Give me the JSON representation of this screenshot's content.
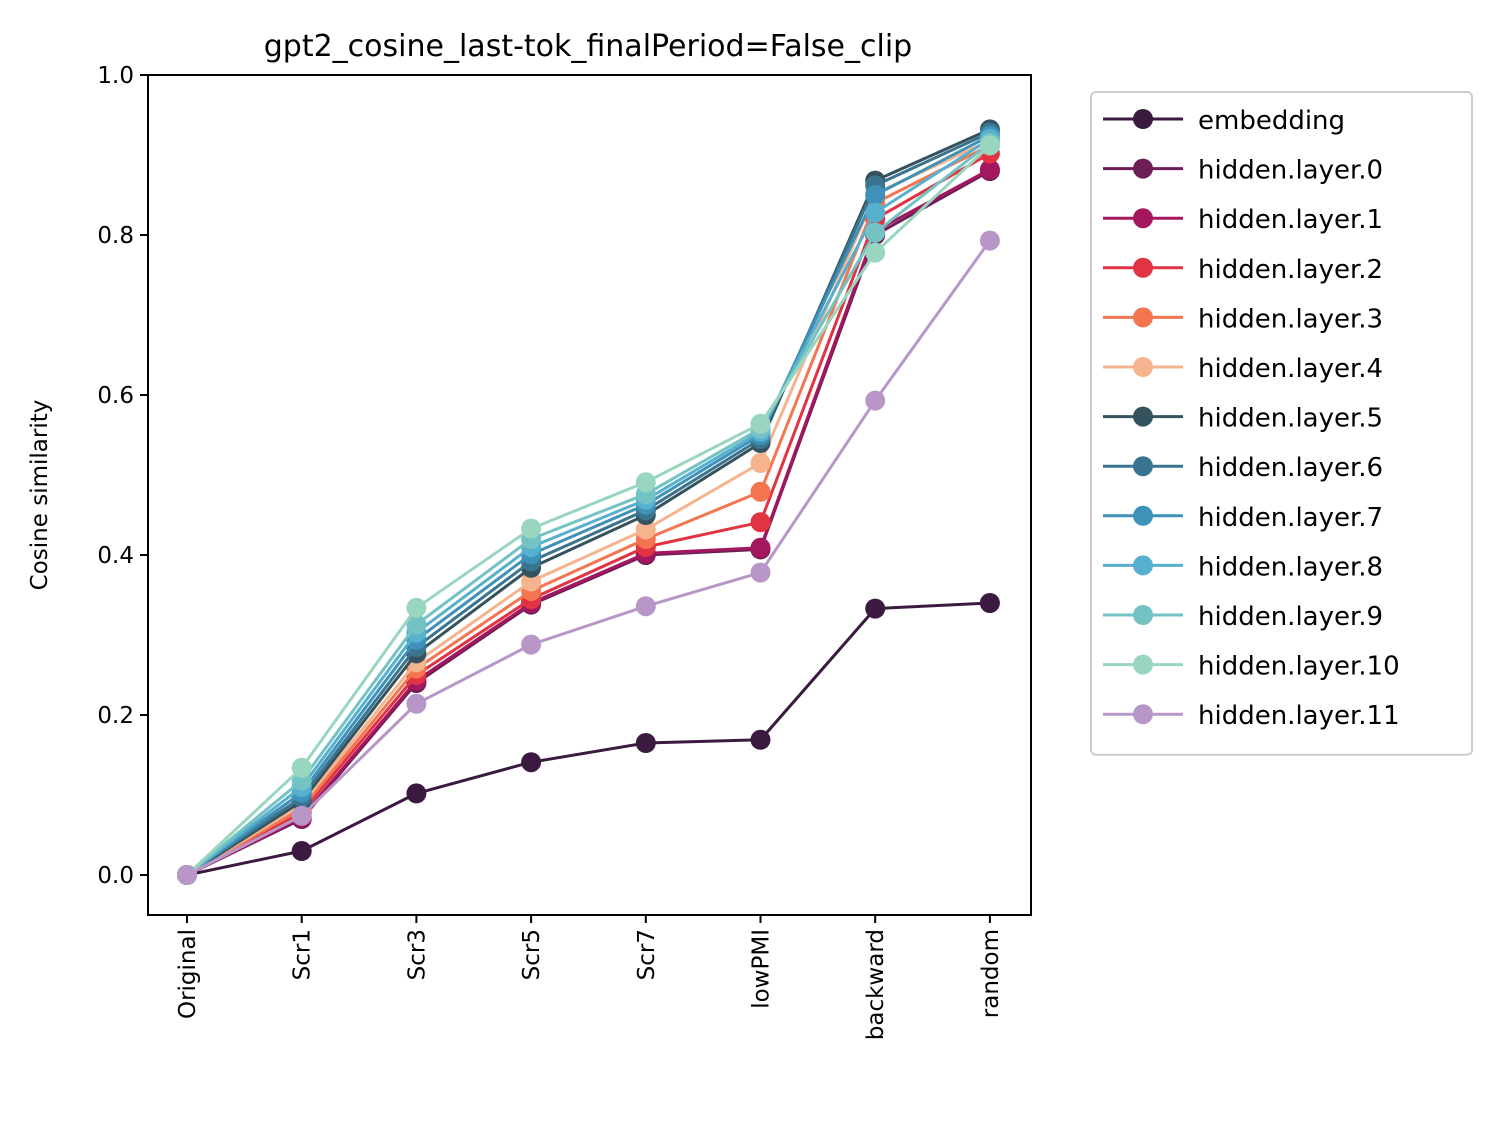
{
  "chart_data": {
    "type": "line",
    "title": "gpt2_cosine_last-tok_finalPeriod=False_clip",
    "xlabel": "",
    "ylabel": "Cosine similarity",
    "ylim": [
      -0.05,
      1.0
    ],
    "yticks": [
      "0.0",
      "0.2",
      "0.4",
      "0.6",
      "0.8",
      "1.0"
    ],
    "ytick_values": [
      0.0,
      0.2,
      0.4,
      0.6,
      0.8,
      1.0
    ],
    "categories": [
      "Original",
      "Scr1",
      "Scr3",
      "Scr5",
      "Scr7",
      "lowPMI",
      "backward",
      "random"
    ],
    "grid": false,
    "legend_position": "outside-right",
    "series": [
      {
        "name": "embedding",
        "color": "#3b1a40",
        "values": [
          0.0,
          0.03,
          0.102,
          0.141,
          0.165,
          0.169,
          0.333,
          0.34
        ]
      },
      {
        "name": "hidden.layer.0",
        "color": "#6e1e57",
        "values": [
          0.0,
          0.07,
          0.24,
          0.338,
          0.4,
          0.407,
          0.8,
          0.88
        ]
      },
      {
        "name": "hidden.layer.1",
        "color": "#a4175f",
        "values": [
          0.0,
          0.072,
          0.243,
          0.34,
          0.402,
          0.409,
          0.805,
          0.882
        ]
      },
      {
        "name": "hidden.layer.2",
        "color": "#e13342",
        "values": [
          0.0,
          0.078,
          0.25,
          0.345,
          0.41,
          0.441,
          0.82,
          0.902
        ]
      },
      {
        "name": "hidden.layer.3",
        "color": "#f37651",
        "values": [
          0.0,
          0.083,
          0.258,
          0.355,
          0.42,
          0.479,
          0.84,
          0.912
        ]
      },
      {
        "name": "hidden.layer.4",
        "color": "#f6b48e",
        "values": [
          0.0,
          0.088,
          0.266,
          0.367,
          0.432,
          0.515,
          0.852,
          0.918
        ]
      },
      {
        "name": "hidden.layer.5",
        "color": "#35535e",
        "values": [
          0.0,
          0.092,
          0.277,
          0.384,
          0.45,
          0.54,
          0.868,
          0.932
        ]
      },
      {
        "name": "hidden.layer.6",
        "color": "#3b748f",
        "values": [
          0.0,
          0.097,
          0.285,
          0.392,
          0.456,
          0.545,
          0.862,
          0.928
        ]
      },
      {
        "name": "hidden.layer.7",
        "color": "#3e91b8",
        "values": [
          0.0,
          0.103,
          0.294,
          0.401,
          0.463,
          0.55,
          0.85,
          0.924
        ]
      },
      {
        "name": "hidden.layer.8",
        "color": "#56b0ce",
        "values": [
          0.0,
          0.11,
          0.303,
          0.41,
          0.469,
          0.554,
          0.828,
          0.92
        ]
      },
      {
        "name": "hidden.layer.9",
        "color": "#73c2c4",
        "values": [
          0.0,
          0.118,
          0.313,
          0.42,
          0.476,
          0.558,
          0.803,
          0.915
        ]
      },
      {
        "name": "hidden.layer.10",
        "color": "#99d6c0",
        "values": [
          0.0,
          0.134,
          0.334,
          0.433,
          0.491,
          0.564,
          0.778,
          0.912
        ]
      },
      {
        "name": "hidden.layer.11",
        "color": "#b897c8",
        "values": [
          0.0,
          0.074,
          0.214,
          0.288,
          0.336,
          0.378,
          0.593,
          0.793
        ]
      }
    ]
  }
}
